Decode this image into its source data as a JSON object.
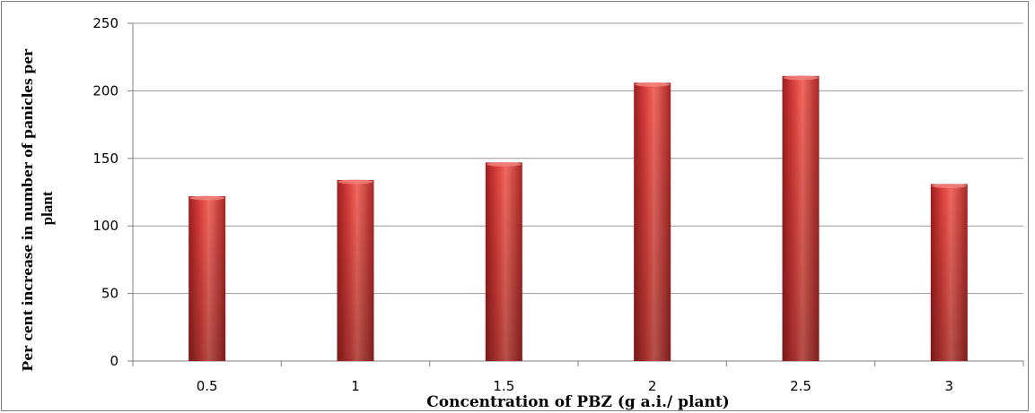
{
  "chart_data": {
    "type": "bar",
    "title": "",
    "xlabel": "Concentration of PBZ (g a.i./ plant)",
    "ylabel_lines": [
      "Per cent increase in number of panicles per",
      "plant"
    ],
    "categories": [
      "0.5",
      "1",
      "1.5",
      "2",
      "2.5",
      "3"
    ],
    "series": [
      {
        "values": [
          122,
          134,
          147,
          206,
          211,
          131
        ]
      }
    ],
    "ylim": [
      0,
      250
    ],
    "yticks": [
      "0",
      "50",
      "100",
      "150",
      "200",
      "250"
    ],
    "grid": true,
    "legend": "none",
    "colors": {
      "bar": "#d9413d",
      "bar_dark": "#9e1f1f",
      "bar_light": "#f06a63",
      "grid": "#999999",
      "axis": "#808080"
    }
  }
}
